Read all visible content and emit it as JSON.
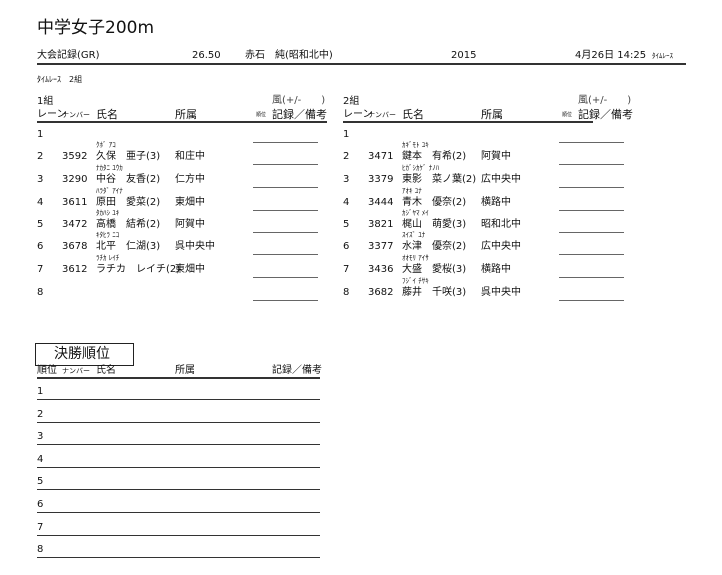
{
  "title": "中学女子200m",
  "record_row": {
    "label": "大会記録(GR)",
    "time": "26.50",
    "holder": "赤石　純(昭和北中)",
    "year": "2015",
    "datetime": "4月26日 14:25",
    "race_type": "ﾀｲﾑﾚｰｽ"
  },
  "round_info": "ﾀｲﾑﾚｰｽ　2組",
  "col_headers": {
    "lane": "レーン",
    "number": "ナンバー",
    "name": "氏名",
    "affiliation": "所属",
    "rank": "順位",
    "record": "記録／備考",
    "wind": "風(+/-　　)"
  },
  "groups": [
    {
      "label": "1組",
      "entries": [
        {
          "lane": "1",
          "kana": "",
          "number": "",
          "name": "",
          "affiliation": ""
        },
        {
          "lane": "2",
          "kana": "ｸﾎﾞ ｱｺ",
          "number": "3592",
          "name": "久保　亜子(3)",
          "affiliation": "和庄中"
        },
        {
          "lane": "3",
          "kana": "ﾅｶﾀﾆ ﾕｳｶ",
          "number": "3290",
          "name": "中谷　友香(2)",
          "affiliation": "仁方中"
        },
        {
          "lane": "4",
          "kana": "ﾊﾗﾀﾞ ｱｲﾅ",
          "number": "3611",
          "name": "原田　愛菜(2)",
          "affiliation": "東畑中"
        },
        {
          "lane": "5",
          "kana": "ﾀｶﾊｼ ﾕｷ",
          "number": "3472",
          "name": "高橋　結希(2)",
          "affiliation": "阿賀中"
        },
        {
          "lane": "6",
          "kana": "ｷﾀﾋﾗ ﾆｺ",
          "number": "3678",
          "name": "北平　仁湖(3)",
          "affiliation": "呉中央中"
        },
        {
          "lane": "7",
          "kana": "ﾗﾁｶ ﾚｲﾁ",
          "number": "3612",
          "name": "ラチカ　レイチ(2)",
          "affiliation": "東畑中"
        },
        {
          "lane": "8",
          "kana": "",
          "number": "",
          "name": "",
          "affiliation": ""
        }
      ]
    },
    {
      "label": "2組",
      "entries": [
        {
          "lane": "1",
          "kana": "",
          "number": "",
          "name": "",
          "affiliation": ""
        },
        {
          "lane": "2",
          "kana": "ｶｷﾞﾓﾄ ﾕｷ",
          "number": "3471",
          "name": "鍵本　有希(2)",
          "affiliation": "阿賀中"
        },
        {
          "lane": "3",
          "kana": "ﾋｶﾞｼｶｹﾞ ﾅﾉﾊ",
          "number": "3379",
          "name": "東影　菜ノ葉(2)",
          "affiliation": "広中央中"
        },
        {
          "lane": "4",
          "kana": "ｱｵｷ ﾕﾅ",
          "number": "3444",
          "name": "青木　優奈(2)",
          "affiliation": "横路中"
        },
        {
          "lane": "5",
          "kana": "ｶｼﾞﾔﾏ ﾒｲ",
          "number": "3821",
          "name": "梶山　萌愛(3)",
          "affiliation": "昭和北中"
        },
        {
          "lane": "6",
          "kana": "ｽｲｽﾞ ﾕﾅ",
          "number": "3377",
          "name": "水津　優奈(2)",
          "affiliation": "広中央中"
        },
        {
          "lane": "7",
          "kana": "ｵｵﾓﾘ ｱｲｻ",
          "number": "3436",
          "name": "大盛　愛桜(3)",
          "affiliation": "横路中"
        },
        {
          "lane": "8",
          "kana": "ﾌｼﾞｲ ﾁｻｷ",
          "number": "3682",
          "name": "藤井　千咲(3)",
          "affiliation": "呉中央中"
        }
      ]
    }
  ],
  "final": {
    "title": "決勝順位",
    "headers": {
      "rank": "順位",
      "number": "ナンバー",
      "name": "氏名",
      "affiliation": "所属",
      "record": "記録／備考"
    },
    "ranks": [
      "1",
      "2",
      "3",
      "4",
      "5",
      "6",
      "7",
      "8"
    ]
  }
}
